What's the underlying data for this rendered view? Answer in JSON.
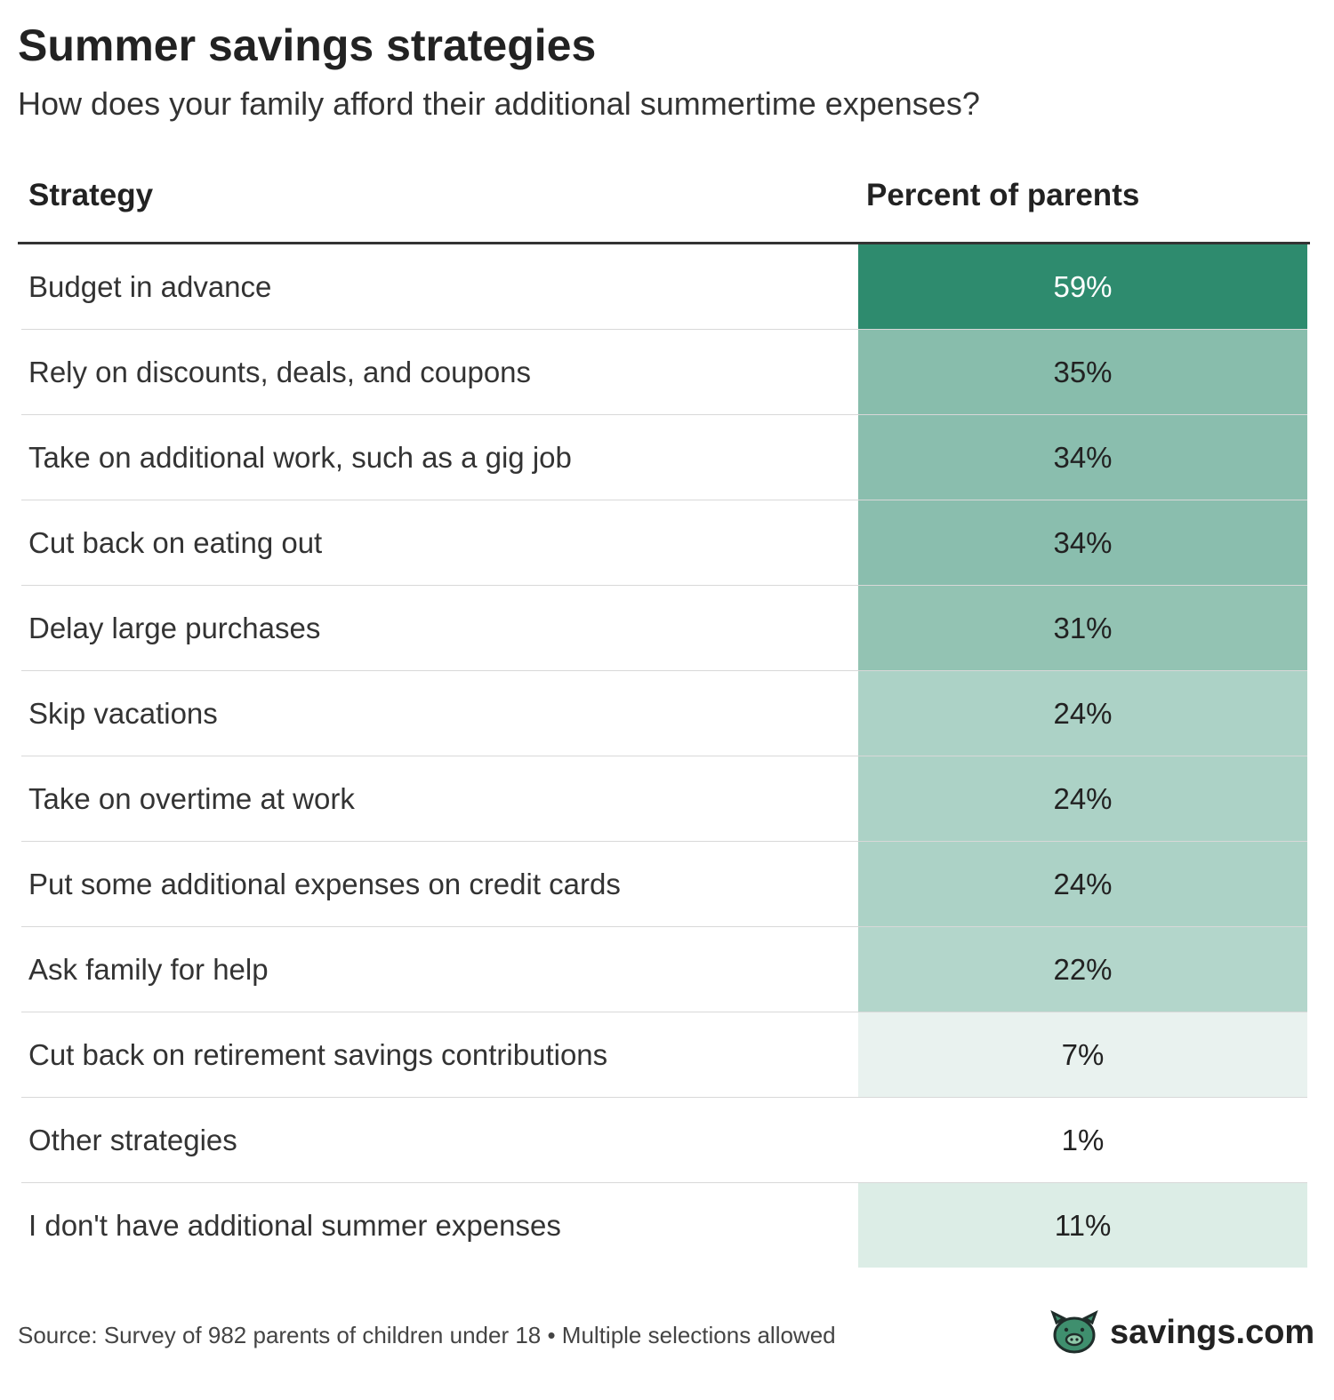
{
  "header": {
    "title": "Summer savings strategies",
    "subtitle": "How does your family afford their additional summertime expenses?"
  },
  "table": {
    "columns": [
      "Strategy",
      "Percent of parents"
    ],
    "rows": [
      {
        "strategy": "Budget in advance",
        "percent": "59%",
        "color": "#2e8b6e",
        "text_color": "#ffffff"
      },
      {
        "strategy": "Rely on discounts, deals, and coupons",
        "percent": "35%",
        "color": "#88bdac",
        "text_color": "#222222"
      },
      {
        "strategy": "Take on additional work, such as a gig job",
        "percent": "34%",
        "color": "#8abeae",
        "text_color": "#222222"
      },
      {
        "strategy": "Cut back on eating out",
        "percent": "34%",
        "color": "#8abeae",
        "text_color": "#222222"
      },
      {
        "strategy": "Delay large purchases",
        "percent": "31%",
        "color": "#93c3b3",
        "text_color": "#222222"
      },
      {
        "strategy": "Skip vacations",
        "percent": "24%",
        "color": "#acd2c6",
        "text_color": "#222222"
      },
      {
        "strategy": "Take on overtime at work",
        "percent": "24%",
        "color": "#acd2c6",
        "text_color": "#222222"
      },
      {
        "strategy": "Put some additional expenses on credit cards",
        "percent": "24%",
        "color": "#acd2c6",
        "text_color": "#222222"
      },
      {
        "strategy": "Ask family for help",
        "percent": "22%",
        "color": "#b3d6cb",
        "text_color": "#222222"
      },
      {
        "strategy": "Cut back on retirement savings contributions",
        "percent": "7%",
        "color": "#e9f2ef",
        "text_color": "#222222"
      },
      {
        "strategy": "Other strategies",
        "percent": "1%",
        "color": "#ffffff",
        "text_color": "#222222"
      },
      {
        "strategy": "I don't have additional summer expenses",
        "percent": "11%",
        "color": "#dcede6",
        "text_color": "#222222"
      }
    ]
  },
  "footer": {
    "source": "Source: Survey of 982 parents of children under 18 • Multiple selections allowed",
    "logo": "savings.com"
  }
}
